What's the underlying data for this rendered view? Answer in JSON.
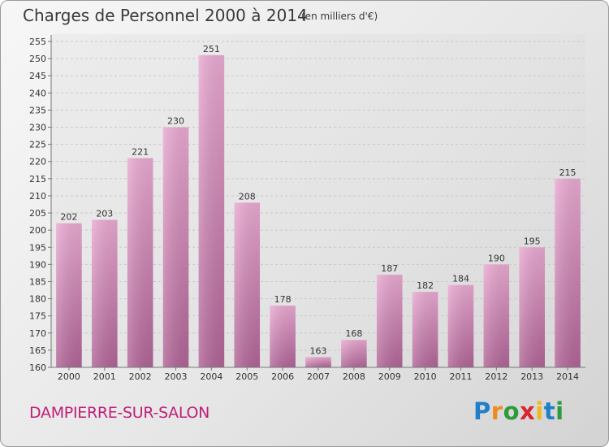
{
  "header": {
    "title": "Charges de Personnel 2000 à 2014",
    "subtitle": "(en milliers d'€)"
  },
  "footer": {
    "town": "DAMPIERRE-SUR-SALON",
    "logo_text": "Proxiti"
  },
  "colors": {
    "bar_top": "#e9a9d1",
    "bar_bottom": "#b06496",
    "town": "#bf1f78"
  },
  "chart_data": {
    "type": "bar",
    "title": "Charges de Personnel 2000 à 2014",
    "subtitle": "(en milliers d'€)",
    "categories": [
      "2000",
      "2001",
      "2002",
      "2003",
      "2004",
      "2005",
      "2006",
      "2007",
      "2008",
      "2009",
      "2010",
      "2011",
      "2012",
      "2013",
      "2014"
    ],
    "values": [
      202,
      203,
      221,
      230,
      251,
      208,
      178,
      163,
      168,
      187,
      182,
      184,
      190,
      195,
      215
    ],
    "ylim": [
      160,
      255
    ],
    "yticks": [
      160,
      165,
      170,
      175,
      180,
      185,
      190,
      195,
      200,
      205,
      210,
      215,
      220,
      225,
      230,
      235,
      240,
      245,
      250,
      255
    ],
    "grid": true,
    "legend": "none"
  }
}
